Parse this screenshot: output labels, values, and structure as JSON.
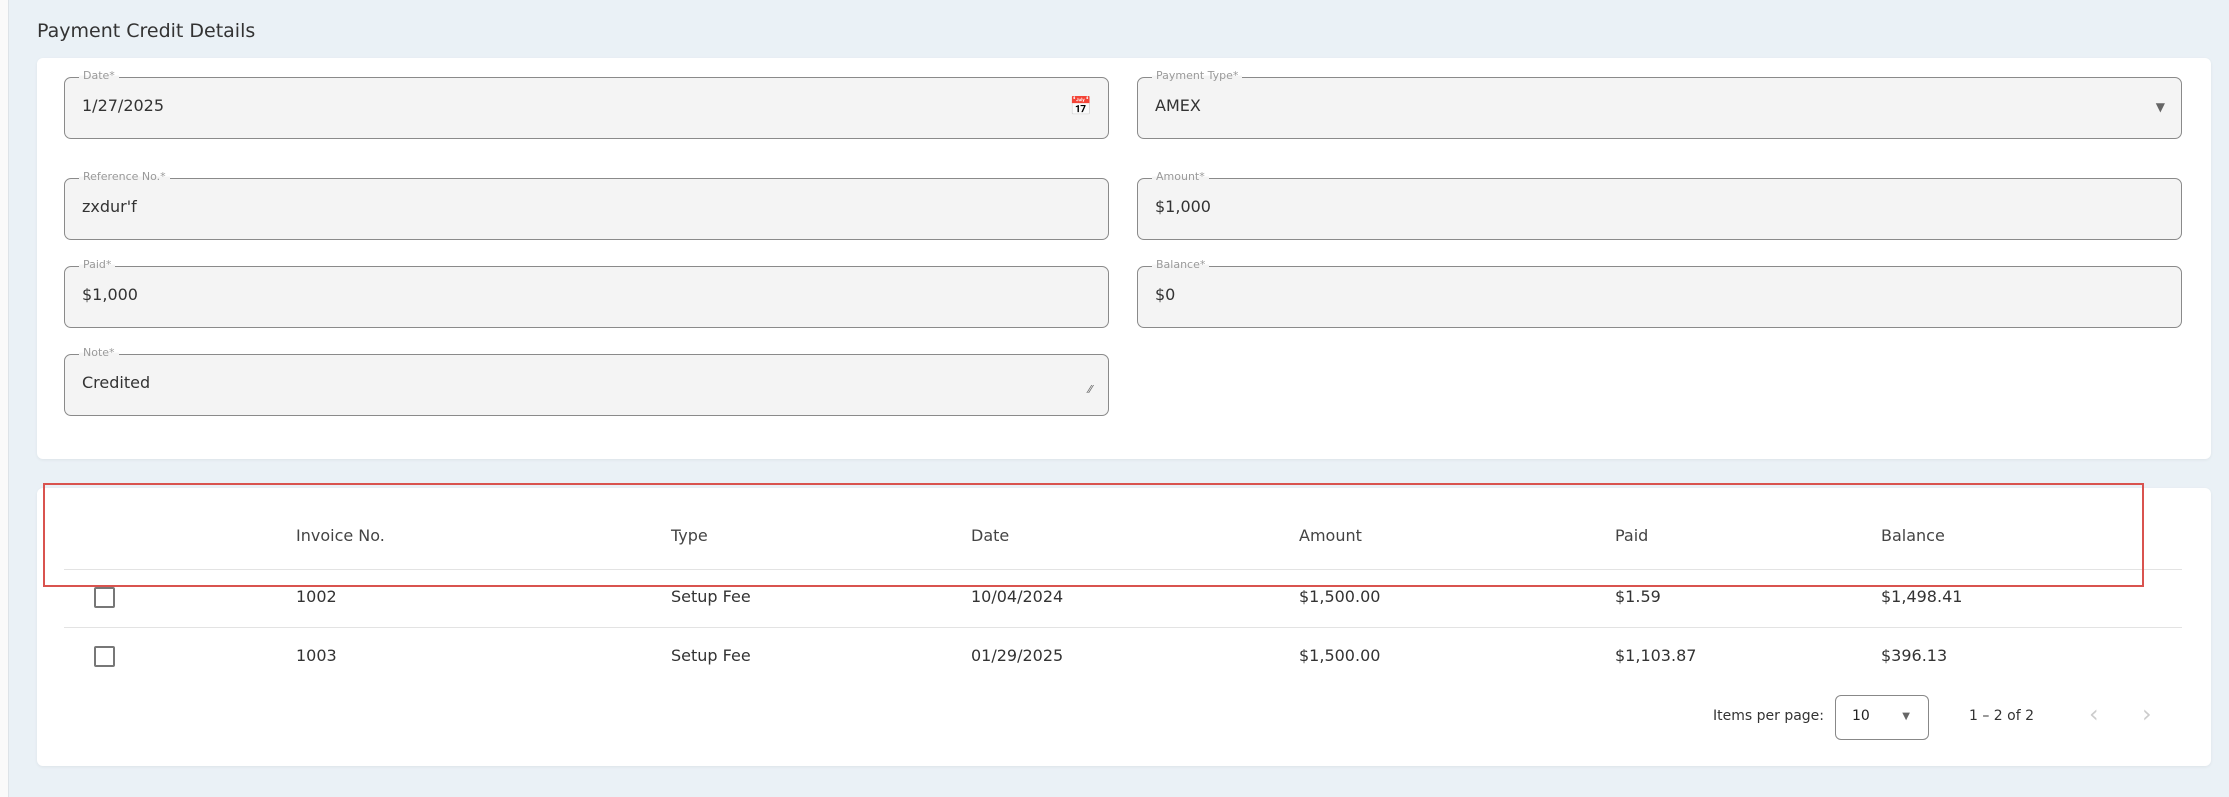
{
  "title": "Payment Credit Details",
  "form": {
    "date": {
      "label": "Date*",
      "value": "1/27/2025",
      "icon": "calendar-icon"
    },
    "payment_type": {
      "label": "Payment Type*",
      "value": "AMEX",
      "icon": "dropdown-arrow-icon"
    },
    "reference": {
      "label": "Reference No.*",
      "value": "zxdur'f"
    },
    "amount": {
      "label": "Amount*",
      "value": "$1,000"
    },
    "paid": {
      "label": "Paid*",
      "value": "$1,000"
    },
    "balance": {
      "label": "Balance*",
      "value": "$0"
    },
    "note": {
      "label": "Note*",
      "value": "Credited",
      "icon": "resize-handle-icon"
    }
  },
  "table": {
    "headers": [
      "Invoice No.",
      "Type",
      "Date",
      "Amount",
      "Paid",
      "Balance"
    ],
    "rows": [
      {
        "invoice": "1002",
        "type": "Setup Fee",
        "date": "10/04/2024",
        "amount": "$1,500.00",
        "paid": "$1.59",
        "balance": "$1,498.41",
        "checked": false
      },
      {
        "invoice": "1003",
        "type": "Setup Fee",
        "date": "01/29/2025",
        "amount": "$1,500.00",
        "paid": "$1,103.87",
        "balance": "$396.13",
        "checked": false
      }
    ]
  },
  "pagination": {
    "items_per_page_label": "Items per page:",
    "page_size": "10",
    "range": "1 – 2 of 2",
    "prev": "‹",
    "next": "›"
  },
  "colors": {
    "highlight_border": "#d9534f",
    "background": "#eaf1f6"
  }
}
